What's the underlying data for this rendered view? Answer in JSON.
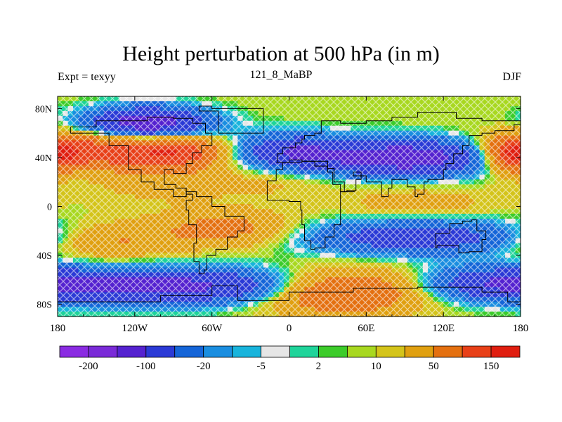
{
  "chart_data": {
    "type": "heatmap",
    "title": "Height perturbation at 500 hPa (in m)",
    "subtitle_left": "Expt = texyy",
    "subtitle_center": "121_8_MaBP",
    "subtitle_right": "DJF",
    "x_ticks": [
      "180",
      "120W",
      "60W",
      "0",
      "60E",
      "120E",
      "180"
    ],
    "y_ticks": [
      "80N",
      "40N",
      "0",
      "40S",
      "80S"
    ],
    "x_range": [
      -180,
      180
    ],
    "y_range": [
      -90,
      90
    ],
    "colorbar": {
      "colors": [
        "#8a2be2",
        "#7a2ad8",
        "#5522d0",
        "#2b3ad6",
        "#1565d8",
        "#1a8ee0",
        "#18b4dc",
        "#e6e6e6",
        "#1fd49a",
        "#3ccc2a",
        "#a8d820",
        "#d4c41a",
        "#e0a010",
        "#e47010",
        "#e84018",
        "#e01e10"
      ],
      "labels": [
        "-200",
        "-100",
        "-20",
        "-5",
        "2",
        "10",
        "50",
        "150"
      ]
    },
    "pattern": [
      {
        "lon": -110,
        "lat": 68,
        "value": -150,
        "dlon": 32,
        "dlat": 9
      },
      {
        "lon": -150,
        "lat": 45,
        "value": 130,
        "dlon": 38,
        "dlat": 10
      },
      {
        "lon": -85,
        "lat": 45,
        "value": 110,
        "dlon": 25,
        "dlat": 9
      },
      {
        "lon": 0,
        "lat": 45,
        "value": -90,
        "dlon": 30,
        "dlat": 10
      },
      {
        "lon": 90,
        "lat": 40,
        "value": -150,
        "dlon": 50,
        "dlat": 10
      },
      {
        "lon": 175,
        "lat": 42,
        "value": 120,
        "dlon": 14,
        "dlat": 10
      },
      {
        "lon": -95,
        "lat": 22,
        "value": 30,
        "dlon": 35,
        "dlat": 12
      },
      {
        "lon": 100,
        "lat": 2,
        "value": 25,
        "dlon": 40,
        "dlat": 10
      },
      {
        "lon": -50,
        "lat": -18,
        "value": 60,
        "dlon": 35,
        "dlat": 10
      },
      {
        "lon": -140,
        "lat": -28,
        "value": 50,
        "dlon": 35,
        "dlat": 10
      },
      {
        "lon": 100,
        "lat": -25,
        "value": -90,
        "dlon": 60,
        "dlat": 10
      },
      {
        "lon": -100,
        "lat": -65,
        "value": -130,
        "dlon": 80,
        "dlat": 10
      },
      {
        "lon": 160,
        "lat": -62,
        "value": -60,
        "dlon": 35,
        "dlat": 9
      },
      {
        "lon": 40,
        "lat": -70,
        "value": 110,
        "dlon": 40,
        "dlat": 12
      },
      {
        "lon": -10,
        "lat": 20,
        "value": 15,
        "dlon": 30,
        "dlat": 10
      }
    ]
  }
}
